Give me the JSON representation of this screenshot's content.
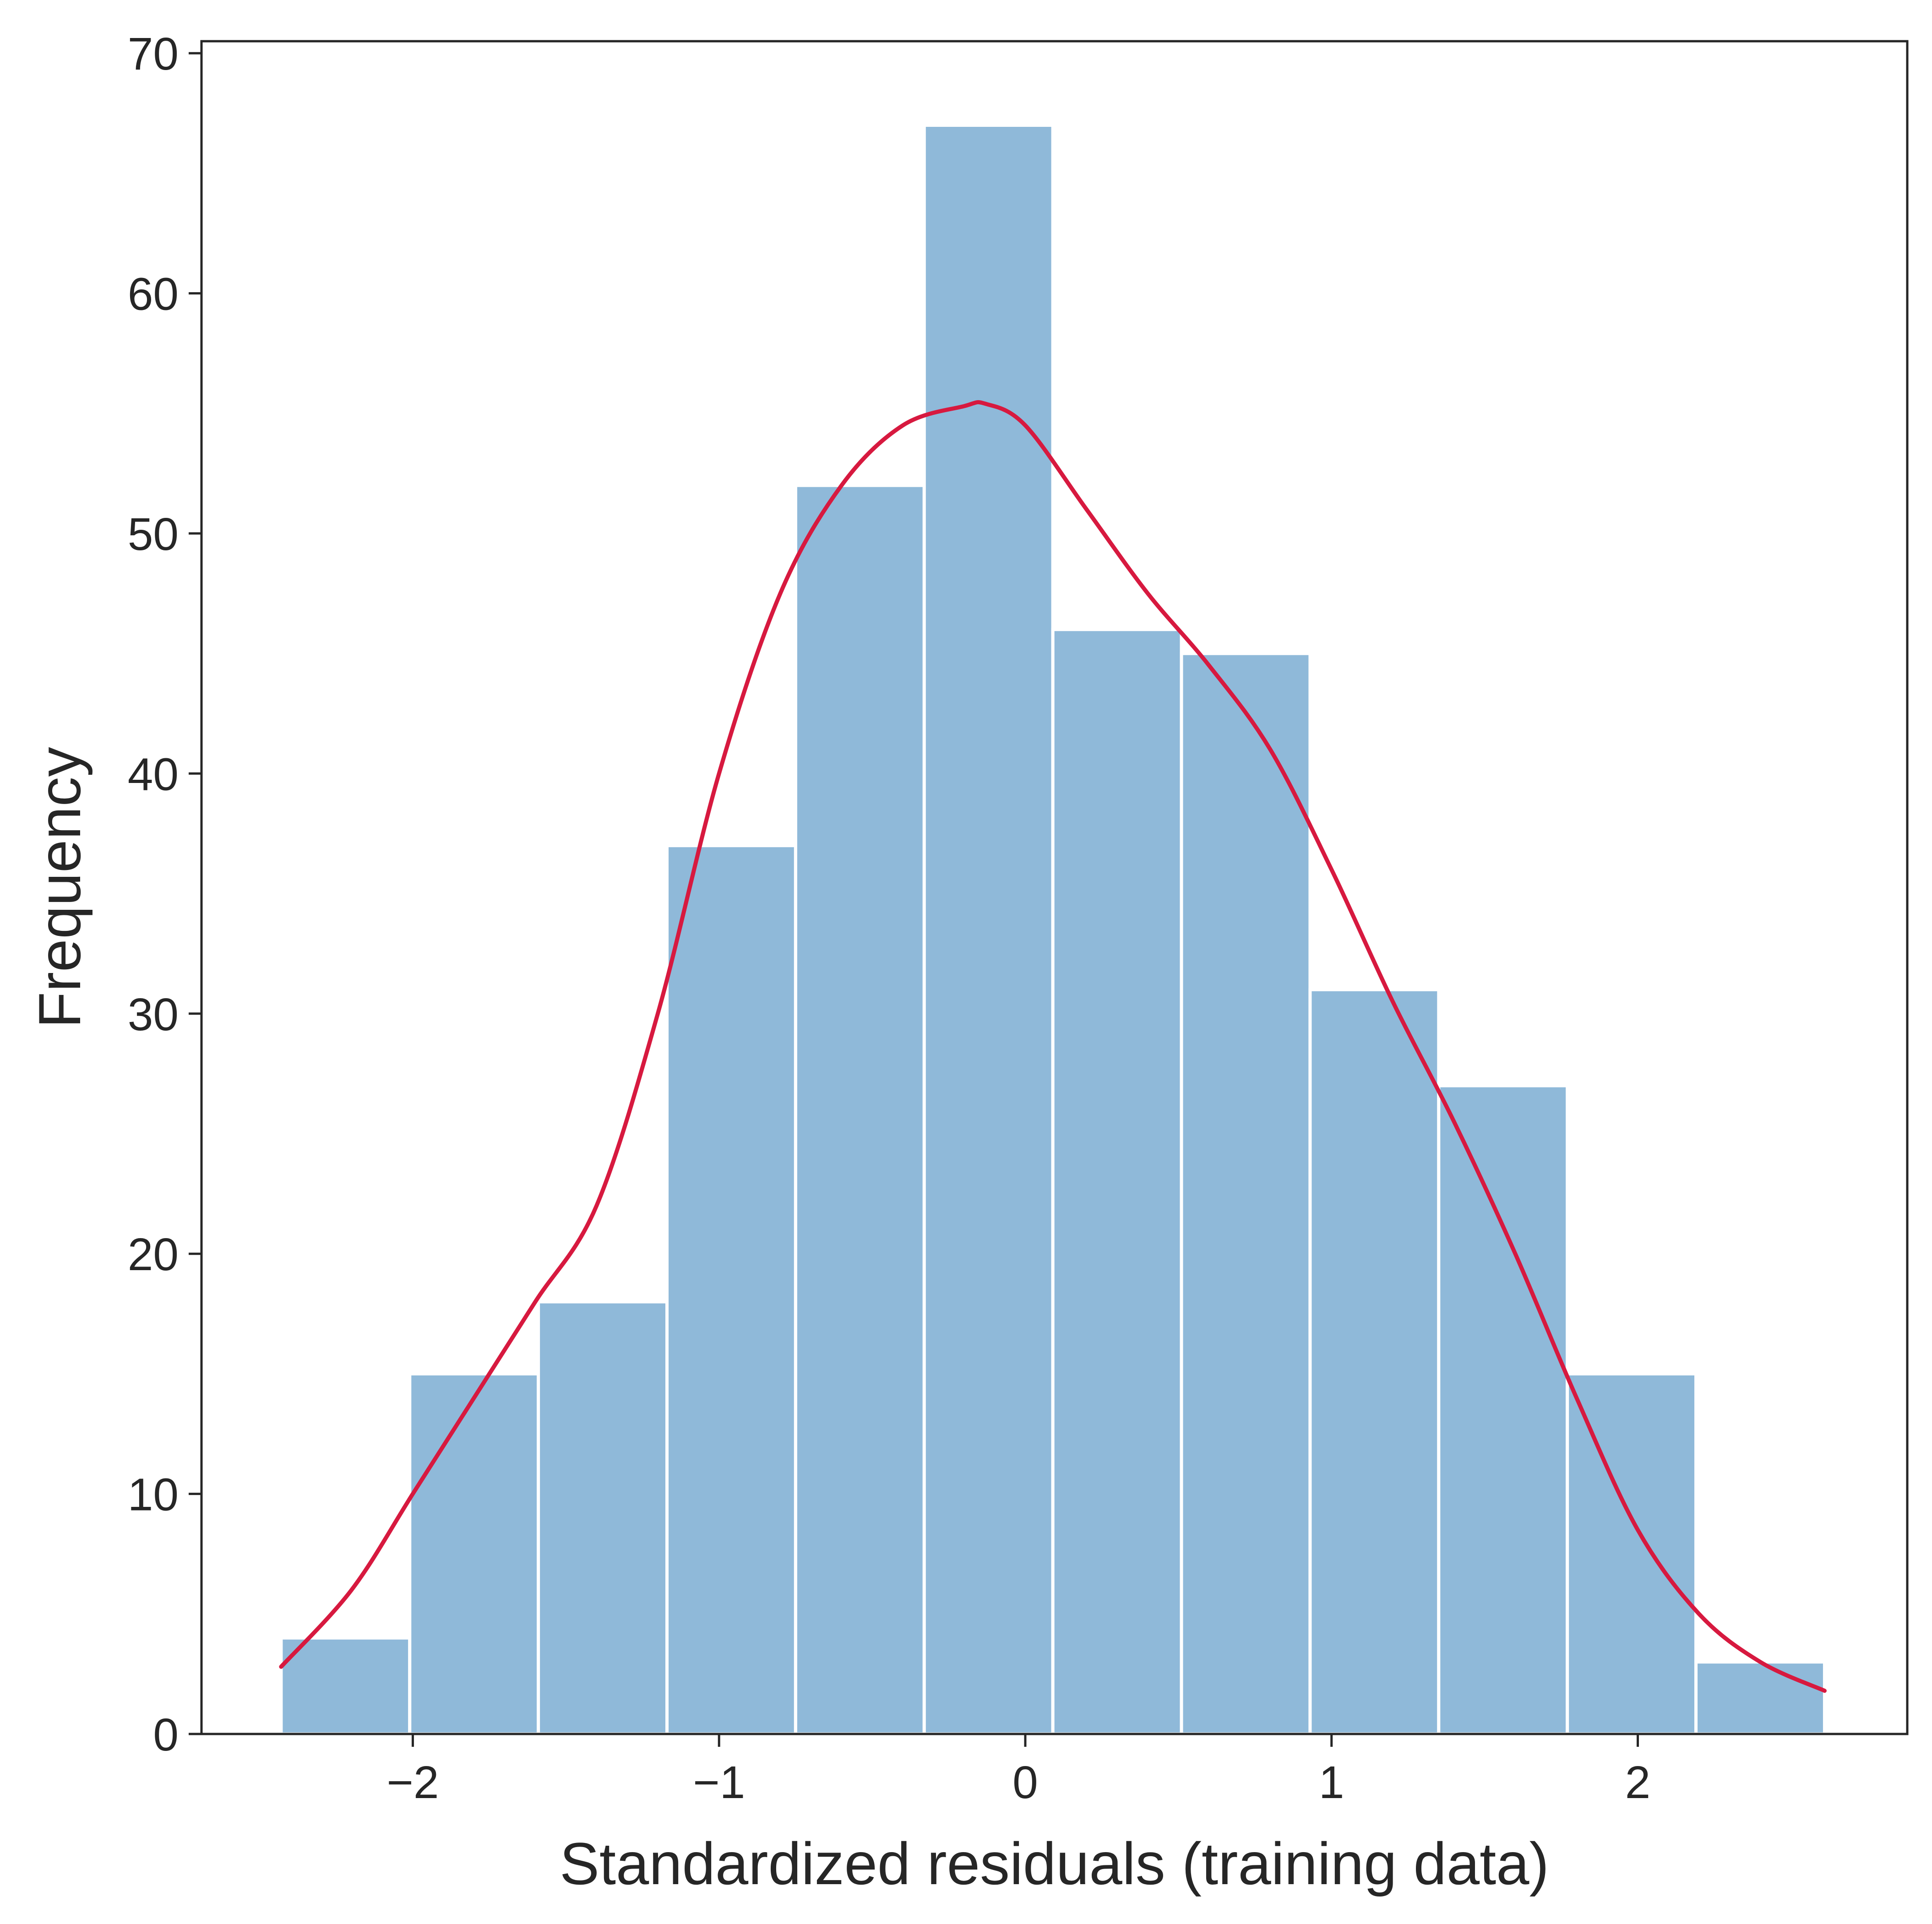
{
  "chart_data": {
    "type": "bar",
    "subtype": "histogram-with-kde",
    "title": "",
    "xlabel": "Standardized residuals (training data)",
    "ylabel": "Frequency",
    "xlim": [
      -2.69,
      2.88
    ],
    "ylim": [
      0,
      70.5
    ],
    "xticks": [
      -2,
      -1,
      0,
      1,
      2
    ],
    "xtick_labels": [
      "−2",
      "−1",
      "0",
      "1",
      "2"
    ],
    "yticks": [
      0,
      10,
      20,
      30,
      40,
      50,
      60,
      70
    ],
    "ytick_labels": [
      "0",
      "10",
      "20",
      "30",
      "40",
      "50",
      "60",
      "70"
    ],
    "bin_edges": [
      -2.43,
      -2.01,
      -1.59,
      -1.17,
      -0.75,
      -0.33,
      0.09,
      0.51,
      0.93,
      1.35,
      1.77,
      2.19,
      2.61
    ],
    "values": [
      4,
      15,
      18,
      37,
      52,
      67,
      46,
      45,
      31,
      27,
      15,
      3
    ],
    "bar_color": "#8fb9d9",
    "kde": {
      "color": "#d7193f",
      "x": [
        -2.43,
        -2.2,
        -2.0,
        -1.8,
        -1.6,
        -1.4,
        -1.2,
        -1.0,
        -0.8,
        -0.6,
        -0.4,
        -0.2,
        -0.13,
        0.0,
        0.2,
        0.4,
        0.6,
        0.8,
        1.0,
        1.2,
        1.4,
        1.6,
        1.8,
        2.0,
        2.2,
        2.4,
        2.61
      ],
      "y": [
        2.8,
        6.0,
        10.0,
        14.0,
        18.0,
        22.0,
        30.0,
        40.0,
        47.5,
        52.0,
        54.5,
        55.3,
        55.4,
        54.5,
        51.0,
        47.5,
        44.5,
        41.0,
        36.0,
        30.5,
        25.5,
        20.0,
        14.0,
        8.5,
        5.0,
        3.0,
        1.8
      ]
    },
    "grid": false,
    "legend": "none"
  }
}
